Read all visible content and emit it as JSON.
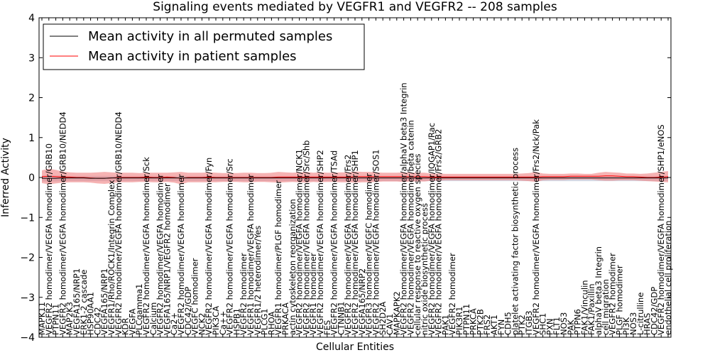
{
  "chart_data": {
    "type": "line",
    "title": "Signaling events mediated by VEGFR1 and VEGFR2 -- 208 samples",
    "xlabel": "Cellular Entities",
    "ylabel": "Inferred Activity",
    "ylim": [
      -4,
      4
    ],
    "yticks": [
      -4,
      -3,
      -2,
      -1,
      0,
      1,
      2,
      3,
      4
    ],
    "ytick_labels": [
      "−4",
      "−3",
      "−2",
      "−1",
      "0",
      "1",
      "2",
      "3",
      "4"
    ],
    "legend": {
      "position": "top-left",
      "entries": [
        {
          "label": "Mean activity in all permuted samples",
          "color": "#000000"
        },
        {
          "label": "Mean activity in patient samples",
          "color": "#ff0000"
        }
      ]
    },
    "colors": {
      "permuted": "#000000",
      "patient": "#ff0000",
      "patient_band": "#f08080",
      "permuted_band": "#b0b8cc"
    },
    "categories": [
      "MAPK11",
      "VEGFR2 homodimer/VEGFA homodimer/GRB10",
      "PTPN11",
      "VEGFR2 homodimer/VEGFA homodimer/GRB10/NEDD4",
      "MAP2K3",
      "VEGFA165/NRP1",
      "ERK1-2 cascade",
      "HSP90AA1",
      "CDC42",
      "VEGFA165/NRP1",
      "VEGFR1/Rho/ROCK1/Integrin Complex",
      "VEGFR2 homodimer/VEGFA homodimer/GRB10/NEDD4",
      "KDR",
      "VEGFA",
      "PLCgamma1",
      "VEGFR2 homodimer/VEGFA homodimer/Sck",
      "Calcium",
      "VEGFR2 homodimer/VEGFA homodimer",
      "VEGFA165/NRP1/VEGFR2 homodimer",
      "Ca2+",
      "VEGFR2 homodimer/VEGFA homodimer",
      "CDC42/GDP",
      "VEGFC homodimer",
      "NCK2",
      "VEGFR2 homodimer/VEGFA homodimer/Fyn",
      "PIK3CA",
      "Ca++",
      "VEGFR2 homodimer/VEGFA homodimer/Src",
      "HSPB1",
      "VEGFR2 homodimer",
      "VEGFR1 homodimer/VEGFA homodimer",
      "VEGFR1/2 heterodimer/Yes",
      "PLCG1",
      "RHOA",
      "VEGFR1 homodimer/PLGF homodimer",
      "PRKACA",
      "actin cytoskeleton reorganization",
      "VEGFR2 homodimer/VEGFA homodimer/NCK1",
      "VEGFR2 homodimer/VEGFA homodimer/Src/Shb",
      "VEGFR1 homodimer",
      "VEGFR2 homodimer/VEGFA homodimer/SHP2",
      "FES",
      "VEGFR2 homodimer/VEGFA homodimer/TSAd",
      "CTNNB1",
      "VEGFR2 homodimer/VEGFA homodimer/Frs2",
      "VEGFR2 homodimer/VEGFA homodimer/SHP1",
      "VEGFA165/NRP2",
      "VEGFR3 homodimer/VEGFC homodimer",
      "VEGFR2 homodimer/VEGFA homodimer/SOS1",
      "SH2D2A",
      "CAV1",
      "MAPKAPK2",
      "VEGFR2 homodimer/VEGFA homodimer/alphaV beta3 Integrin",
      "VEGFR2 homodimer/VEGFA homodimer/beta catenin",
      "cellular response to reactive oxygen species",
      "nitric oxide biosynthetic process",
      "VEGFR2 homodimer/VEGFA homodimer/IQGAP1/Rac",
      "VEGFR2 homodimer/VEGFA homodimer/Frs2/GRB2",
      "PAK1",
      "VEGFR2 homodimer",
      "PIK3R1",
      "PTPN11",
      "PRKCA",
      "PTK2B",
      "FRS2",
      "AKT1",
      "FYN",
      "CDH5",
      "platelet activating factor biosynthetic process",
      "PTK2",
      "ITGB3",
      "VEGFR2 homodimer/VEGFA homodimer/Frs2/Nck/Pak",
      "SHC1",
      "PXN",
      "FLT1",
      "NOS3",
      "PAK",
      "PTPN6",
      "FAK1/Vinculin",
      "FAK1/Paxillin",
      "alphaV beta3 Integrin",
      "cell migration",
      "VEGFR2 homodimer",
      "PLGF homodimer",
      "PI3K",
      "NOS3",
      "L-citrulline",
      "HRAS",
      "CDC42/GDP",
      "VEGFR2 homodimer/VEGFA homodimer/SHP1/eNOS",
      "endothelial cell proliferation"
    ],
    "series": [
      {
        "name": "Mean activity in patient samples",
        "values": [
          0.02,
          0.03,
          0.02,
          0.01,
          0.01,
          0.0,
          0.0,
          -0.01,
          -0.02,
          -0.02,
          -0.01,
          0.0,
          0.0,
          0.0,
          0.0,
          0.01,
          0.0,
          0.0,
          0.01,
          0.0,
          -0.02,
          0.0,
          0.0,
          0.0,
          0.01,
          0.0,
          0.0,
          0.0,
          0.0,
          0.0,
          0.0,
          0.0,
          0.0,
          0.0,
          0.01,
          0.01,
          0.01,
          0.01,
          0.01,
          0.01,
          0.01,
          0.01,
          0.01,
          0.01,
          0.01,
          0.02,
          0.02,
          0.02,
          0.02,
          0.02,
          0.02,
          0.02,
          0.02,
          0.02,
          0.02,
          0.02,
          0.01,
          0.01,
          0.01,
          0.01,
          0.01,
          0.01,
          0.01,
          0.01,
          0.01,
          0.01,
          0.01,
          0.01,
          0.01,
          0.01,
          0.01,
          0.01,
          0.02,
          0.02,
          0.02,
          0.02,
          0.03,
          0.03,
          0.03,
          0.03,
          0.03,
          0.04,
          0.04,
          0.03,
          0.02,
          0.02,
          0.01,
          0.0,
          0.0,
          0.01,
          0.02
        ],
        "upper": [
          0.18,
          0.22,
          0.19,
          0.15,
          0.13,
          0.12,
          0.12,
          0.12,
          0.13,
          0.14,
          0.13,
          0.12,
          0.12,
          0.12,
          0.11,
          0.12,
          0.12,
          0.12,
          0.12,
          0.13,
          0.14,
          0.12,
          0.12,
          0.12,
          0.13,
          0.12,
          0.11,
          0.11,
          0.11,
          0.12,
          0.12,
          0.11,
          0.11,
          0.12,
          0.14,
          0.13,
          0.12,
          0.13,
          0.14,
          0.12,
          0.13,
          0.12,
          0.12,
          0.13,
          0.13,
          0.15,
          0.14,
          0.14,
          0.13,
          0.12,
          0.12,
          0.12,
          0.13,
          0.12,
          0.12,
          0.12,
          0.1,
          0.1,
          0.09,
          0.09,
          0.09,
          0.09,
          0.09,
          0.09,
          0.09,
          0.09,
          0.09,
          0.09,
          0.09,
          0.1,
          0.11,
          0.14,
          0.1,
          0.09,
          0.09,
          0.09,
          0.1,
          0.1,
          0.09,
          0.09,
          0.12,
          0.14,
          0.13,
          0.12,
          0.1,
          0.1,
          0.09,
          0.1,
          0.12,
          0.14,
          0.16
        ],
        "lower": [
          -0.14,
          -0.17,
          -0.15,
          -0.13,
          -0.12,
          -0.12,
          -0.12,
          -0.13,
          -0.15,
          -0.16,
          -0.14,
          -0.12,
          -0.12,
          -0.12,
          -0.11,
          -0.11,
          -0.12,
          -0.12,
          -0.11,
          -0.13,
          -0.17,
          -0.12,
          -0.12,
          -0.12,
          -0.12,
          -0.12,
          -0.11,
          -0.11,
          -0.11,
          -0.12,
          -0.12,
          -0.11,
          -0.11,
          -0.12,
          -0.13,
          -0.12,
          -0.11,
          -0.12,
          -0.13,
          -0.11,
          -0.12,
          -0.11,
          -0.11,
          -0.12,
          -0.12,
          -0.13,
          -0.12,
          -0.12,
          -0.11,
          -0.1,
          -0.1,
          -0.1,
          -0.11,
          -0.1,
          -0.1,
          -0.1,
          -0.08,
          -0.08,
          -0.07,
          -0.07,
          -0.07,
          -0.07,
          -0.07,
          -0.07,
          -0.07,
          -0.07,
          -0.07,
          -0.07,
          -0.07,
          -0.08,
          -0.09,
          -0.11,
          -0.07,
          -0.06,
          -0.06,
          -0.06,
          -0.05,
          -0.05,
          -0.05,
          -0.05,
          -0.07,
          -0.08,
          -0.08,
          -0.07,
          -0.07,
          -0.07,
          -0.08,
          -0.09,
          -0.1,
          -0.11,
          -0.12
        ]
      },
      {
        "name": "Mean activity in all permuted samples",
        "values": [
          -0.02,
          -0.02,
          -0.02,
          -0.01,
          -0.01,
          -0.01,
          -0.01,
          -0.02,
          -0.02,
          -0.02,
          -0.01,
          -0.01,
          -0.01,
          -0.01,
          -0.01,
          -0.01,
          -0.01,
          -0.01,
          -0.01,
          -0.01,
          -0.01,
          -0.01,
          -0.01,
          -0.01,
          -0.01,
          -0.01,
          -0.01,
          -0.01,
          -0.01,
          -0.01,
          -0.01,
          -0.01,
          -0.01,
          -0.01,
          -0.01,
          -0.01,
          -0.01,
          -0.01,
          -0.01,
          -0.01,
          -0.01,
          -0.01,
          -0.01,
          -0.01,
          -0.01,
          -0.01,
          -0.01,
          -0.01,
          -0.01,
          -0.01,
          -0.01,
          -0.01,
          -0.01,
          -0.01,
          -0.01,
          -0.01,
          -0.01,
          -0.01,
          -0.01,
          -0.01,
          -0.01,
          -0.01,
          -0.01,
          -0.01,
          -0.01,
          -0.01,
          -0.01,
          -0.01,
          -0.01,
          -0.01,
          -0.01,
          -0.01,
          -0.01,
          -0.01,
          -0.01,
          -0.01,
          -0.01,
          -0.01,
          -0.01,
          -0.01,
          -0.01,
          -0.01,
          -0.01,
          -0.01,
          -0.01,
          -0.01,
          -0.01,
          -0.01,
          -0.01,
          -0.01,
          -0.01
        ],
        "upper": [
          0.05,
          0.05,
          0.05,
          0.05,
          0.04,
          0.04,
          0.04,
          0.04,
          0.04,
          0.04,
          0.04,
          0.04,
          0.04,
          0.04,
          0.04,
          0.04,
          0.04,
          0.04,
          0.04,
          0.04,
          0.04,
          0.04,
          0.04,
          0.04,
          0.04,
          0.04,
          0.04,
          0.04,
          0.04,
          0.04,
          0.04,
          0.04,
          0.04,
          0.04,
          0.04,
          0.04,
          0.04,
          0.04,
          0.04,
          0.04,
          0.04,
          0.04,
          0.04,
          0.04,
          0.04,
          0.04,
          0.04,
          0.04,
          0.04,
          0.04,
          0.04,
          0.04,
          0.04,
          0.04,
          0.04,
          0.04,
          0.04,
          0.04,
          0.04,
          0.04,
          0.04,
          0.04,
          0.04,
          0.04,
          0.04,
          0.04,
          0.04,
          0.04,
          0.04,
          0.04,
          0.04,
          0.04,
          0.04,
          0.04,
          0.04,
          0.04,
          0.04,
          0.04,
          0.04,
          0.04,
          0.04,
          0.04,
          0.04,
          0.04,
          0.04,
          0.04,
          0.04,
          0.04,
          0.04,
          0.04,
          0.04
        ],
        "lower": [
          -0.1,
          -0.1,
          -0.1,
          -0.09,
          -0.09,
          -0.09,
          -0.09,
          -0.09,
          -0.09,
          -0.09,
          -0.09,
          -0.09,
          -0.09,
          -0.09,
          -0.09,
          -0.09,
          -0.09,
          -0.09,
          -0.09,
          -0.09,
          -0.09,
          -0.09,
          -0.09,
          -0.09,
          -0.09,
          -0.09,
          -0.09,
          -0.09,
          -0.09,
          -0.09,
          -0.09,
          -0.09,
          -0.09,
          -0.09,
          -0.09,
          -0.09,
          -0.09,
          -0.09,
          -0.09,
          -0.09,
          -0.09,
          -0.09,
          -0.09,
          -0.09,
          -0.09,
          -0.09,
          -0.09,
          -0.09,
          -0.09,
          -0.09,
          -0.09,
          -0.09,
          -0.09,
          -0.09,
          -0.09,
          -0.09,
          -0.09,
          -0.09,
          -0.09,
          -0.09,
          -0.09,
          -0.09,
          -0.09,
          -0.09,
          -0.09,
          -0.09,
          -0.09,
          -0.09,
          -0.09,
          -0.09,
          -0.09,
          -0.09,
          -0.09,
          -0.09,
          -0.09,
          -0.09,
          -0.09,
          -0.09,
          -0.09,
          -0.09,
          -0.09,
          -0.09,
          -0.09,
          -0.09,
          -0.09,
          -0.09,
          -0.09,
          -0.09,
          -0.09,
          -0.09,
          -0.09
        ]
      }
    ]
  }
}
